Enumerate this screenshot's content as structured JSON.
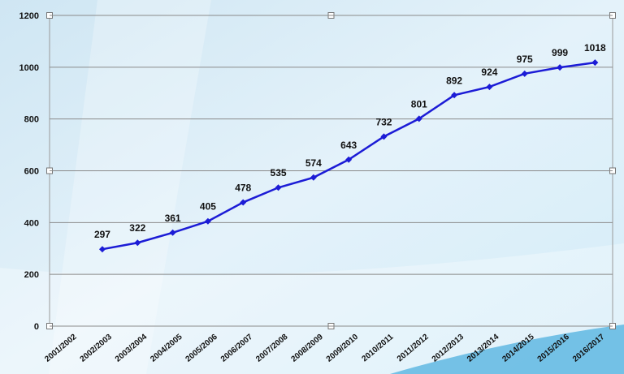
{
  "chart_data": {
    "type": "line",
    "categories": [
      "2001/2002",
      "2002/2003",
      "2003/2004",
      "2004/2005",
      "2005/2006",
      "2006/2007",
      "2007/2008",
      "2008/2009",
      "2009/2010",
      "2010/2011",
      "2011/2012",
      "2012/2013",
      "2013/2014",
      "2014/2015",
      "2015/2016",
      "2016/2017"
    ],
    "values": [
      null,
      297,
      322,
      361,
      405,
      478,
      535,
      574,
      643,
      732,
      801,
      892,
      924,
      975,
      999,
      1018
    ],
    "color": "#1c1cd6",
    "ylim": [
      0,
      1200
    ],
    "yticks": [
      0,
      200,
      400,
      600,
      800,
      1000,
      1200
    ],
    "grid": true
  }
}
